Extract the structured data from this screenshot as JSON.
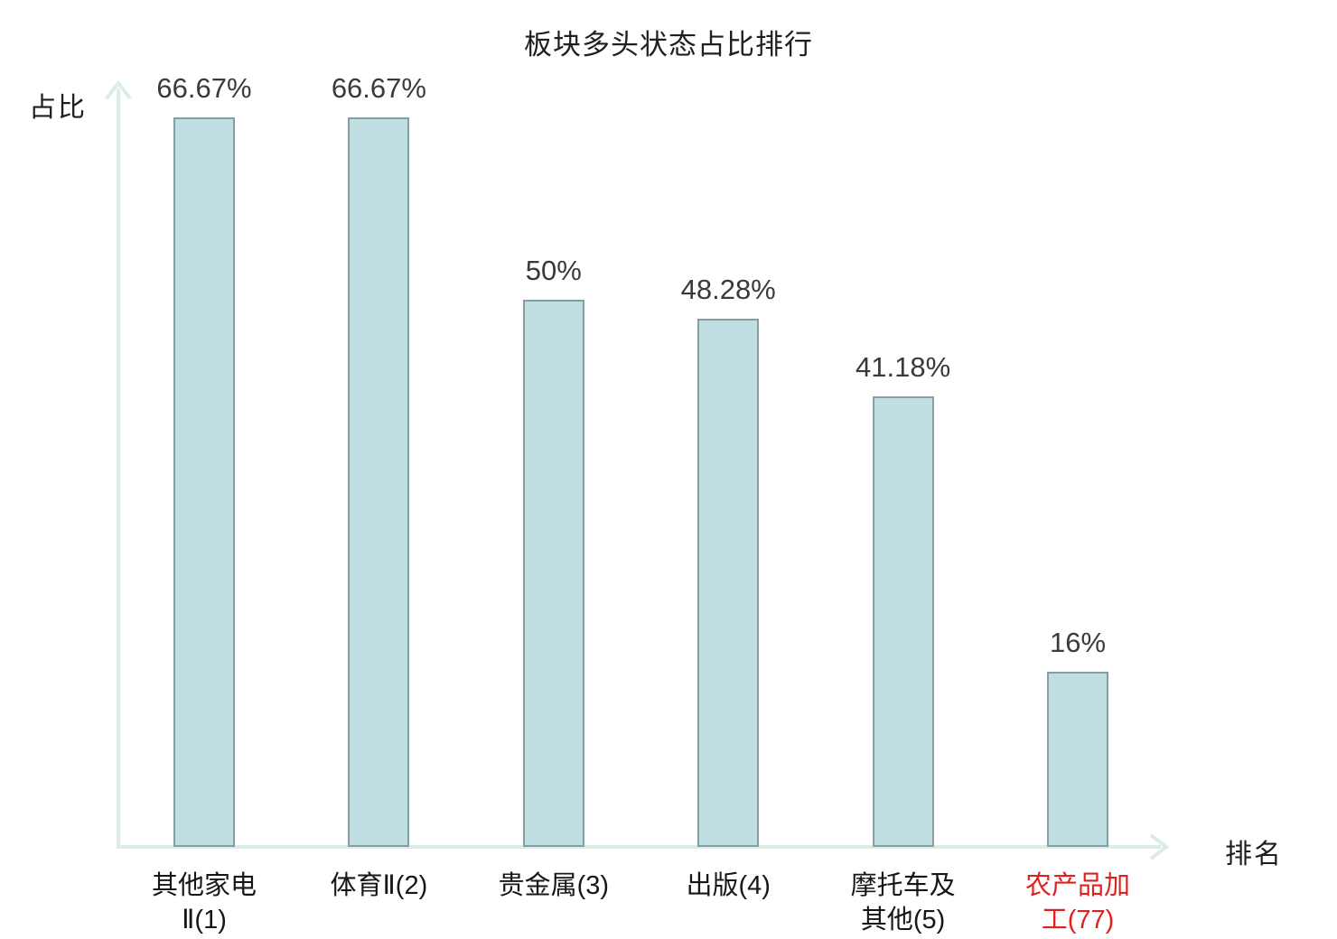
{
  "chart_data": {
    "type": "bar",
    "title": "板块多头状态占比排行",
    "xlabel": "排名",
    "ylabel": "占比",
    "categories": [
      "其他家电Ⅱ(1)",
      "体育Ⅱ(2)",
      "贵金属(3)",
      "出版(4)",
      "摩托车及其他(5)",
      "农产品加工(77)"
    ],
    "category_lines": [
      [
        "其他家电",
        "Ⅱ(1)"
      ],
      [
        "体育Ⅱ(2)"
      ],
      [
        "贵金属(3)"
      ],
      [
        "出版(4)"
      ],
      [
        "摩托车及",
        "其他(5)"
      ],
      [
        "农产品加",
        "工(77)"
      ]
    ],
    "values": [
      66.67,
      66.67,
      50,
      48.28,
      41.18,
      16
    ],
    "value_labels": [
      "66.67%",
      "66.67%",
      "50%",
      "48.28%",
      "41.18%",
      "16%"
    ],
    "unit": "%",
    "ylim": [
      0,
      70
    ],
    "grid": false,
    "legend": null,
    "highlight_index": 5,
    "colors": {
      "bar_fill": "#bfdfe2",
      "bar_border": "#849ea1",
      "axis": "#daedea",
      "title_text": "#1f1f1f",
      "category_text": "#161616",
      "value_text": "#3a3a3a",
      "highlight_text": "#e01f1f"
    }
  }
}
